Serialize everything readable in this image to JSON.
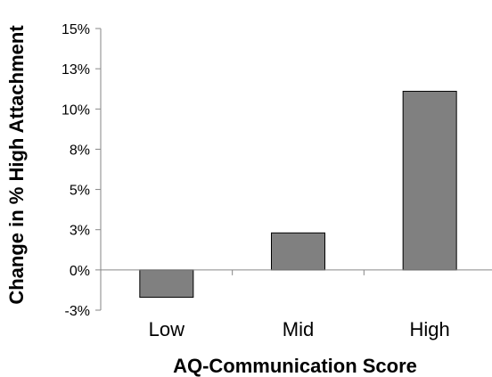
{
  "chart_data": {
    "type": "bar",
    "categories": [
      "Low",
      "Mid",
      "High"
    ],
    "values": [
      -1.7,
      2.3,
      11.1
    ],
    "xlabel": "AQ-Communication Score",
    "ylabel": "Change in % High Attachment",
    "ylim": [
      -2.5,
      15
    ],
    "yticks": [
      {
        "value": -2.5,
        "label": "-3%"
      },
      {
        "value": 0,
        "label": "0%"
      },
      {
        "value": 2.5,
        "label": "3%"
      },
      {
        "value": 5,
        "label": "5%"
      },
      {
        "value": 7.5,
        "label": "8%"
      },
      {
        "value": 10,
        "label": "10%"
      },
      {
        "value": 12.5,
        "label": "13%"
      },
      {
        "value": 15,
        "label": "15%"
      }
    ],
    "bar_color": "#808080",
    "grid": false,
    "legend": "none"
  }
}
